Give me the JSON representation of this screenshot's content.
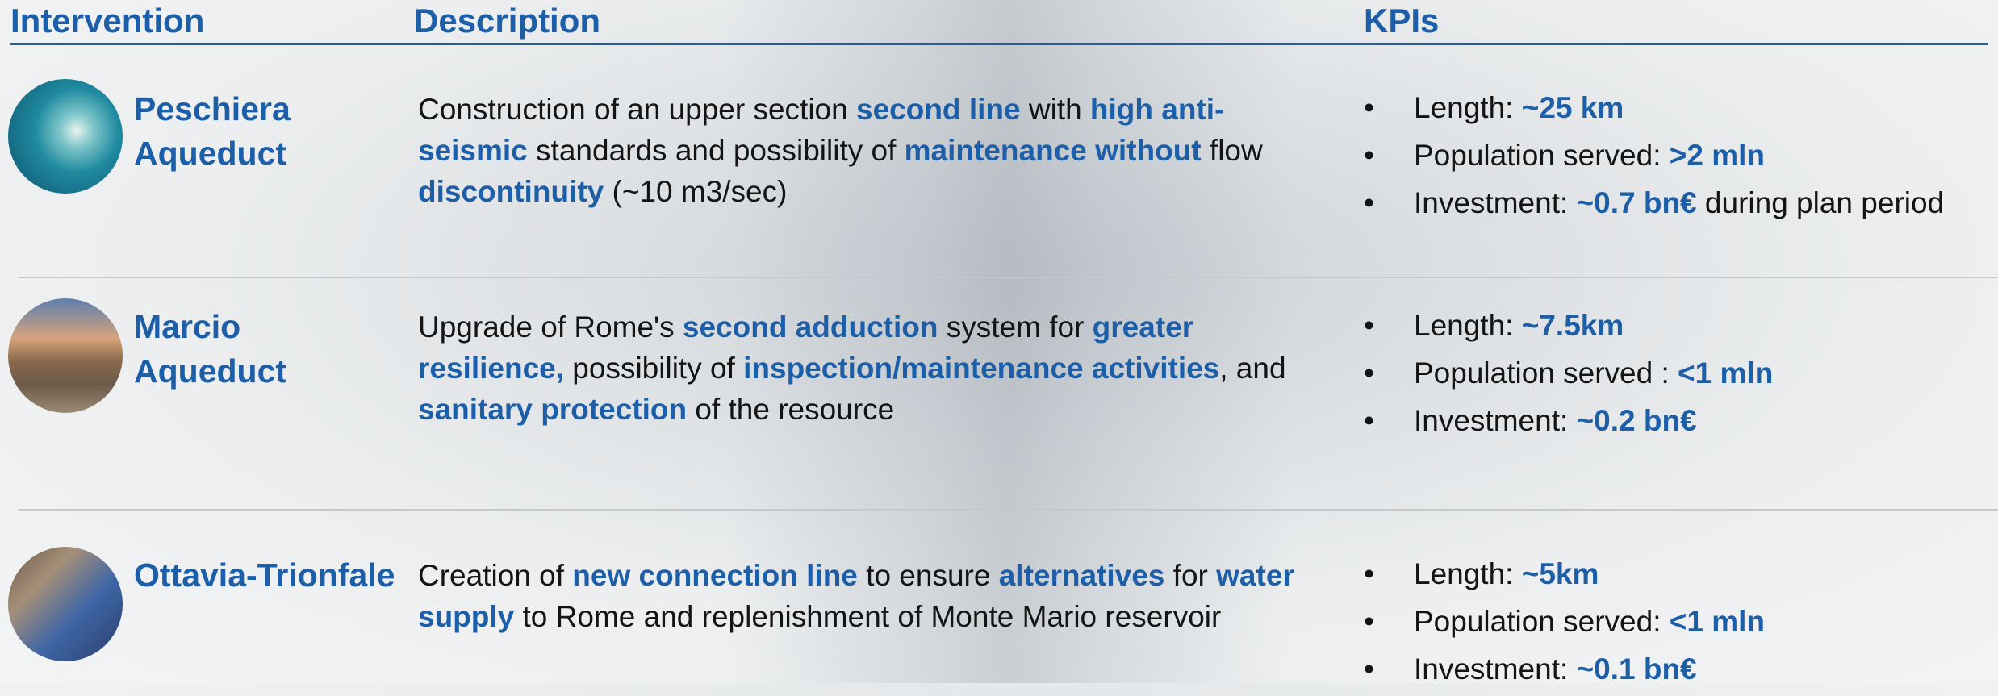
{
  "header": {
    "columns": [
      "Intervention",
      "Description",
      "KPIs"
    ]
  },
  "rows": [
    {
      "name": "Peschiera Aqueduct",
      "description": [
        {
          "text": "Construction of an upper section ",
          "em": false
        },
        {
          "text": "second line",
          "em": true
        },
        {
          "text": " with ",
          "em": false
        },
        {
          "text": "high anti-seismic",
          "em": true
        },
        {
          "text": " standards and possibility of ",
          "em": false
        },
        {
          "text": "maintenance without",
          "em": true
        },
        {
          "text": " flow ",
          "em": false
        },
        {
          "text": "discontinuity",
          "em": true
        },
        {
          "text": " (~10 m3/sec)",
          "em": false
        }
      ],
      "kpis": [
        [
          {
            "text": "Length: ",
            "em": false
          },
          {
            "text": "~25 km",
            "em": true
          }
        ],
        [
          {
            "text": "Population served: ",
            "em": false
          },
          {
            "text": ">2 mln",
            "em": true
          }
        ],
        [
          {
            "text": "Investment: ",
            "em": false
          },
          {
            "text": "~0.7 bn€",
            "em": true
          },
          {
            "text": " during plan period",
            "em": false
          }
        ]
      ]
    },
    {
      "name": "Marcio Aqueduct",
      "description": [
        {
          "text": "Upgrade of Rome's ",
          "em": false
        },
        {
          "text": "second adduction",
          "em": true
        },
        {
          "text": " system for ",
          "em": false
        },
        {
          "text": "greater resilience,",
          "em": true
        },
        {
          "text": " possibility of ",
          "em": false
        },
        {
          "text": "inspection/maintenance activities",
          "em": true
        },
        {
          "text": ", and ",
          "em": false
        },
        {
          "text": "sanitary protection",
          "em": true
        },
        {
          "text": " of the resource",
          "em": false
        }
      ],
      "kpis": [
        [
          {
            "text": "Length: ",
            "em": false
          },
          {
            "text": "~7.5km",
            "em": true
          }
        ],
        [
          {
            "text": "Population served : ",
            "em": false
          },
          {
            "text": "<1 mln",
            "em": true
          }
        ],
        [
          {
            "text": "Investment: ",
            "em": false
          },
          {
            "text": "~0.2 bn€",
            "em": true
          }
        ]
      ]
    },
    {
      "name": "Ottavia-Trionfale",
      "description": [
        {
          "text": "Creation of ",
          "em": false
        },
        {
          "text": "new connection line",
          "em": true
        },
        {
          "text": " to ensure ",
          "em": false
        },
        {
          "text": "alternatives",
          "em": true
        },
        {
          "text": " for ",
          "em": false
        },
        {
          "text": "water supply",
          "em": true
        },
        {
          "text": " to Rome and replenishment of Monte Mario reservoir",
          "em": false
        }
      ],
      "kpis": [
        [
          {
            "text": "Length: ",
            "em": false
          },
          {
            "text": "~5km",
            "em": true
          }
        ],
        [
          {
            "text": "Population served: ",
            "em": false
          },
          {
            "text": "<1 mln",
            "em": true
          }
        ],
        [
          {
            "text": "Investment: ",
            "em": false
          },
          {
            "text": "~0.1 bn€",
            "em": true
          }
        ]
      ]
    }
  ]
}
